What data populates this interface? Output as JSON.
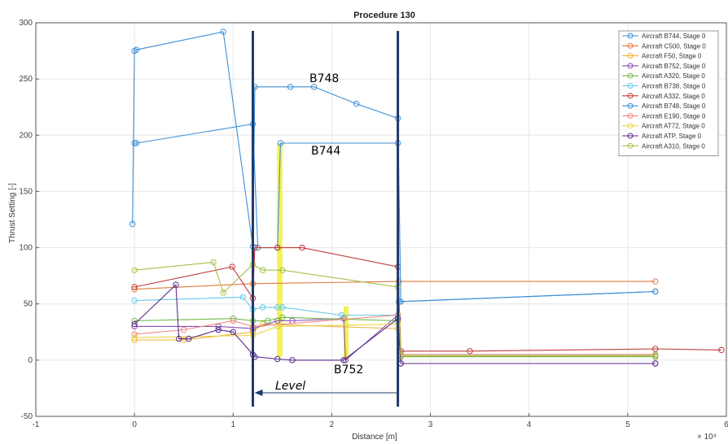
{
  "chart_data": {
    "type": "line",
    "title": "Procedure 130",
    "xlabel": "Distance [m]",
    "ylabel": "Thrust Setting [-]",
    "x_exponent_label": "× 10⁴",
    "xlim": [
      -1,
      6
    ],
    "ylim": [
      -50,
      300
    ],
    "xticks": [
      -1,
      0,
      1,
      2,
      3,
      4,
      5,
      6
    ],
    "yticks": [
      -50,
      0,
      50,
      100,
      150,
      200,
      250,
      300
    ],
    "grid": true,
    "legend_position": "top-right",
    "series": [
      {
        "name": "Aircraft B744, Stage 0",
        "color": "#3c8fd4",
        "x": [
          0,
          0.02,
          1.2,
          1.25,
          1.45,
          1.48,
          2.67,
          2.68,
          5.28
        ],
        "y": [
          193,
          193,
          210,
          100,
          100,
          193,
          193,
          52,
          61
        ]
      },
      {
        "name": "Aircraft C500, Stage 0",
        "color": "#e07a3c",
        "x": [
          0,
          1.2,
          2.68,
          5.28
        ],
        "y": [
          63,
          68,
          70,
          70
        ]
      },
      {
        "name": "Aircraft F50, Stage 0",
        "color": "#f0b23a",
        "x": [
          0,
          0.5,
          1.2,
          1.3,
          2.67,
          2.7,
          5.28
        ],
        "y": [
          18,
          18,
          25,
          32,
          28,
          3,
          4
        ]
      },
      {
        "name": "Aircraft B752, Stage 0",
        "color": "#8a4fb5",
        "x": [
          0,
          0.85,
          1.2,
          1.45,
          1.6,
          2.12,
          2.14,
          2.67,
          2.7,
          5.28
        ],
        "y": [
          30,
          30,
          28,
          35,
          35,
          37,
          0,
          40,
          -3,
          -3
        ]
      },
      {
        "name": "Aircraft A320, Stage 0",
        "color": "#6fb84a",
        "x": [
          0,
          1.0,
          1.2,
          1.35,
          1.5,
          2.67,
          2.7,
          5.28
        ],
        "y": [
          35,
          37,
          35,
          35,
          38,
          35,
          3,
          3
        ]
      },
      {
        "name": "Aircraft B738, Stage 0",
        "color": "#66c9e8",
        "x": [
          0,
          1.1,
          1.2,
          1.3,
          1.45,
          1.5,
          2.1,
          2.67,
          2.7,
          5.28
        ],
        "y": [
          53,
          56,
          45,
          47,
          47,
          47,
          40,
          40,
          5,
          5
        ]
      },
      {
        "name": "Aircraft A332, Stage 0",
        "color": "#c03a3a",
        "x": [
          0,
          0.99,
          1.2,
          1.22,
          1.45,
          1.7,
          2.67,
          2.7,
          3.4,
          5.28,
          5.95
        ],
        "y": [
          65,
          83,
          55,
          100,
          100,
          100,
          83,
          8,
          8,
          10,
          9
        ]
      },
      {
        "name": "Aircraft B748, Stage 0",
        "color": "#3c8fd4",
        "x": [
          -0.02,
          0,
          0.02,
          0.9,
          1.2,
          1.22,
          1.58,
          1.82,
          2.25,
          2.67,
          2.7,
          5.28
        ],
        "y": [
          121,
          275,
          276,
          292,
          101,
          243,
          243,
          243,
          228,
          215,
          52,
          61
        ]
      },
      {
        "name": "Aircraft E190, Stage 0",
        "color": "#ee8c80",
        "x": [
          0,
          0.5,
          1.0,
          1.2,
          2.67,
          2.7,
          5.28
        ],
        "y": [
          23,
          27,
          35,
          30,
          40,
          5,
          5
        ]
      },
      {
        "name": "Aircraft AT72, Stage 0",
        "color": "#ead44a",
        "x": [
          0,
          1.2,
          1.45,
          2.67
        ],
        "y": [
          20,
          22,
          30,
          32
        ]
      },
      {
        "name": "Aircraft ATP, Stage 0",
        "color": "#5a2a8a",
        "x": [
          0,
          0.42,
          0.45,
          0.55,
          0.85,
          1.0,
          1.2,
          1.22,
          1.45,
          1.6,
          2.12,
          2.67,
          2.7,
          5.28
        ],
        "y": [
          32,
          67,
          19,
          19,
          27,
          25,
          5,
          3,
          1,
          0,
          0,
          37,
          -3,
          -3
        ]
      },
      {
        "name": "Aircraft A310, Stage 0",
        "color": "#a3c24a",
        "x": [
          0,
          0.8,
          0.9,
          1.2,
          1.3,
          1.5,
          2.67,
          2.7,
          5.28
        ],
        "y": [
          80,
          87,
          60,
          85,
          80,
          80,
          65,
          4,
          4
        ]
      }
    ],
    "annotations": {
      "b748": "B748",
      "b744": "B744",
      "b752": "B752",
      "level": "Level"
    }
  },
  "colors": {
    "marker_lines": "#1f3a6b",
    "highlight": "#f2ee3a",
    "grid": "#e6e6e6",
    "axis": "#555555"
  }
}
